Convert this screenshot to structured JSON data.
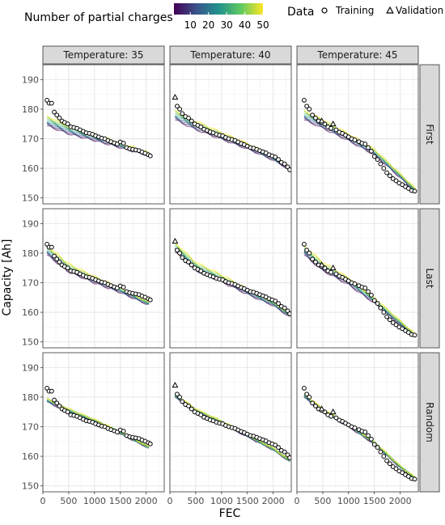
{
  "legend": {
    "color_title": "Number of partial charges",
    "color_ticks": [
      10,
      20,
      30,
      40,
      50
    ],
    "color_range": [
      1,
      50
    ],
    "palette": [
      "#440154",
      "#3b528b",
      "#21918c",
      "#5ec962",
      "#fde725"
    ],
    "shape_title": "Data",
    "shape_items": [
      {
        "label": "Training",
        "shape": "circle"
      },
      {
        "label": "Validation",
        "shape": "triangle"
      }
    ]
  },
  "chart_data": {
    "type": "line",
    "xlabel": "FEC",
    "ylabel": "Capacity [Ah]",
    "col_labels": [
      "Temperature: 35",
      "Temperature: 40",
      "Temperature: 45"
    ],
    "row_labels": [
      "First",
      "Last",
      "Random"
    ],
    "xlim": [
      0,
      2350
    ],
    "ylim": [
      148,
      195
    ],
    "x_ticks": [
      0,
      500,
      1000,
      1500,
      2000
    ],
    "y_ticks": [
      150,
      160,
      170,
      180,
      190
    ],
    "columns": [
      {
        "temperature": 35,
        "training": [
          [
            80,
            183
          ],
          [
            120,
            182
          ],
          [
            170,
            182
          ],
          [
            220,
            179
          ],
          [
            270,
            178
          ],
          [
            320,
            177
          ],
          [
            370,
            176
          ],
          [
            420,
            175.5
          ],
          [
            480,
            175
          ],
          [
            540,
            174
          ],
          [
            600,
            173.8
          ],
          [
            660,
            173.5
          ],
          [
            720,
            173
          ],
          [
            780,
            172.5
          ],
          [
            840,
            172
          ],
          [
            900,
            171.8
          ],
          [
            960,
            171.5
          ],
          [
            1020,
            171
          ],
          [
            1080,
            170.6
          ],
          [
            1140,
            170.2
          ],
          [
            1200,
            170
          ],
          [
            1260,
            169.4
          ],
          [
            1320,
            169
          ],
          [
            1380,
            168.6
          ],
          [
            1440,
            168.2
          ],
          [
            1500,
            168.9
          ],
          [
            1560,
            168.5
          ],
          [
            1620,
            167
          ],
          [
            1680,
            166.6
          ],
          [
            1740,
            166.4
          ],
          [
            1800,
            166.2
          ],
          [
            1860,
            166
          ],
          [
            1920,
            165.5
          ],
          [
            1980,
            165.1
          ],
          [
            2040,
            164.6
          ],
          [
            2080,
            164.2
          ]
        ],
        "validation": [],
        "model_points": {
          "First": [
            [
              80,
              176
            ],
            [
              500,
              173
            ],
            [
              1000,
              170.5
            ],
            [
              1500,
              167.8
            ],
            [
              2050,
              164.8
            ]
          ],
          "Last": [
            [
              80,
              181
            ],
            [
              500,
              175
            ],
            [
              1000,
              171
            ],
            [
              1500,
              167.5
            ],
            [
              2050,
              163
            ]
          ],
          "Random": [
            [
              80,
              179
            ],
            [
              500,
              175.5
            ],
            [
              1000,
              172
            ],
            [
              1500,
              168
            ],
            [
              2050,
              163
            ]
          ]
        }
      },
      {
        "temperature": 40,
        "training": [
          [
            140,
            181
          ],
          [
            190,
            180
          ],
          [
            240,
            178.5
          ],
          [
            300,
            177.5
          ],
          [
            360,
            177
          ],
          [
            420,
            176
          ],
          [
            480,
            175
          ],
          [
            540,
            174.5
          ],
          [
            600,
            174
          ],
          [
            660,
            173.2
          ],
          [
            720,
            172.8
          ],
          [
            780,
            172.3
          ],
          [
            840,
            172
          ],
          [
            900,
            171.5
          ],
          [
            960,
            171.2
          ],
          [
            1020,
            171
          ],
          [
            1080,
            170.4
          ],
          [
            1140,
            170
          ],
          [
            1200,
            169.7
          ],
          [
            1260,
            169.4
          ],
          [
            1320,
            168.9
          ],
          [
            1380,
            168.4
          ],
          [
            1440,
            168
          ],
          [
            1500,
            167.5
          ],
          [
            1560,
            167
          ],
          [
            1620,
            166.8
          ],
          [
            1680,
            166.4
          ],
          [
            1740,
            166
          ],
          [
            1800,
            165.6
          ],
          [
            1860,
            165.2
          ],
          [
            1920,
            164.6
          ],
          [
            1980,
            164.2
          ],
          [
            2040,
            163.8
          ],
          [
            2100,
            163
          ],
          [
            2160,
            162
          ],
          [
            2220,
            161.5
          ],
          [
            2280,
            160.5
          ],
          [
            2320,
            159.5
          ]
        ],
        "validation": [
          [
            100,
            184
          ]
        ],
        "model_points": {
          "First": [
            [
              100,
              178
            ],
            [
              500,
              174.5
            ],
            [
              1000,
              171
            ],
            [
              1500,
              167.5
            ],
            [
              2000,
              163.5
            ],
            [
              2320,
              160
            ]
          ],
          "Last": [
            [
              100,
              182
            ],
            [
              500,
              175.5
            ],
            [
              1000,
              171.5
            ],
            [
              1500,
              167
            ],
            [
              2000,
              163
            ],
            [
              2320,
              159
            ]
          ],
          "Random": [
            [
              100,
              180.5
            ],
            [
              500,
              175.5
            ],
            [
              1000,
              171.5
            ],
            [
              1500,
              167
            ],
            [
              2000,
              162.5
            ],
            [
              2320,
              158.5
            ]
          ]
        }
      },
      {
        "temperature": 45,
        "training": [
          [
            140,
            183
          ],
          [
            190,
            181
          ],
          [
            240,
            180
          ],
          [
            300,
            178
          ],
          [
            360,
            177
          ],
          [
            420,
            176
          ],
          [
            480,
            175.5
          ],
          [
            540,
            175
          ],
          [
            600,
            174
          ],
          [
            660,
            173.5
          ],
          [
            760,
            173
          ],
          [
            820,
            172.2
          ],
          [
            880,
            171.8
          ],
          [
            940,
            171.2
          ],
          [
            1000,
            170.6
          ],
          [
            1060,
            170
          ],
          [
            1120,
            169.6
          ],
          [
            1200,
            169
          ],
          [
            1260,
            168.5
          ],
          [
            1320,
            168.2
          ],
          [
            1380,
            167
          ],
          [
            1440,
            165.8
          ],
          [
            1500,
            164
          ],
          [
            1560,
            163
          ],
          [
            1620,
            161.5
          ],
          [
            1680,
            160
          ],
          [
            1740,
            158.5
          ],
          [
            1800,
            157.5
          ],
          [
            1860,
            156.5
          ],
          [
            1920,
            155.8
          ],
          [
            1980,
            155
          ],
          [
            2040,
            154.5
          ],
          [
            2100,
            153.8
          ],
          [
            2160,
            153.2
          ],
          [
            2220,
            152.5
          ],
          [
            2280,
            152.3
          ]
        ],
        "validation": [
          [
            480,
            176
          ],
          [
            700,
            175
          ]
        ],
        "model_points": {
          "First": [
            [
              140,
              178
            ],
            [
              500,
              175
            ],
            [
              1000,
              170.5
            ],
            [
              1500,
              165.5
            ],
            [
              2000,
              157.5
            ],
            [
              2300,
              152.5
            ]
          ],
          "Last": [
            [
              140,
              181
            ],
            [
              500,
              175.5
            ],
            [
              1000,
              170.5
            ],
            [
              1500,
              164
            ],
            [
              2000,
              156.5
            ],
            [
              2300,
              152
            ]
          ],
          "Random": [
            [
              140,
              180.5
            ],
            [
              500,
              175.5
            ],
            [
              1000,
              170.5
            ],
            [
              1500,
              164.5
            ],
            [
              2000,
              156.5
            ],
            [
              2300,
              152.5
            ]
          ]
        }
      }
    ]
  }
}
